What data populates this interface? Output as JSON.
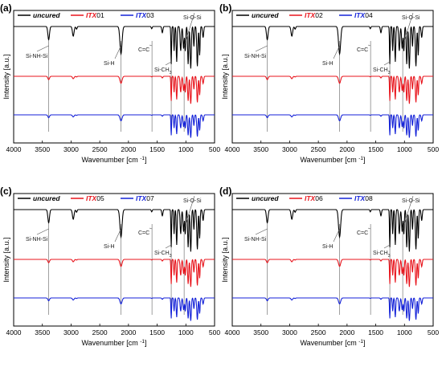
{
  "panels_meta": {
    "x_ticks": [
      4000,
      3500,
      3000,
      2500,
      2000,
      1500,
      1000,
      500
    ],
    "xlabel": "Wavenumber [cm",
    "xlabel_sup": "-1",
    "xlabel_close": "]",
    "ylabel": "Intensity [a.u.]",
    "colors": {
      "uncured": "#000000",
      "sample_a": "#e8141c",
      "sample_b": "#1422d8"
    }
  },
  "chart_data": [
    {
      "type": "line",
      "panel_label": "(a)",
      "xlabel": "Wavenumber [cm-1]",
      "ylabel": "Intensity [a.u.]",
      "xlim": [
        4000,
        500
      ],
      "x_reversed": true,
      "series": [
        {
          "name": "uncured",
          "color": "#000000"
        },
        {
          "name": "ITX01",
          "color": "#e8141c"
        },
        {
          "name": "ITX03",
          "color": "#1422d8"
        }
      ],
      "legend_items": [
        {
          "prefix": "uncured",
          "suffix": ""
        },
        {
          "prefix": "ITX",
          "suffix": "01"
        },
        {
          "prefix": "ITX",
          "suffix": "03"
        }
      ],
      "annotations": [
        {
          "text": "Si-NH-Si",
          "x": 3390
        },
        {
          "text": "Si-H",
          "x": 2130
        },
        {
          "text": "C=C",
          "x": 1590
        },
        {
          "text": "Si-CH3",
          "x": 1255
        },
        {
          "text": "Si-O-Si",
          "x": 1030
        }
      ]
    },
    {
      "type": "line",
      "panel_label": "(b)",
      "xlabel": "Wavenumber [cm-1]",
      "ylabel": "Intensity [a.u.]",
      "xlim": [
        4000,
        500
      ],
      "x_reversed": true,
      "series": [
        {
          "name": "uncured",
          "color": "#000000"
        },
        {
          "name": "ITX02",
          "color": "#e8141c"
        },
        {
          "name": "ITX04",
          "color": "#1422d8"
        }
      ],
      "legend_items": [
        {
          "prefix": "uncured",
          "suffix": ""
        },
        {
          "prefix": "ITX",
          "suffix": "02"
        },
        {
          "prefix": "ITX",
          "suffix": "04"
        }
      ],
      "annotations": [
        {
          "text": "Si-NH-Si",
          "x": 3390
        },
        {
          "text": "Si-H",
          "x": 2130
        },
        {
          "text": "C=C",
          "x": 1590
        },
        {
          "text": "Si-CH3",
          "x": 1255
        },
        {
          "text": "Si-O-Si",
          "x": 1030
        }
      ]
    },
    {
      "type": "line",
      "panel_label": "(c)",
      "xlabel": "Wavenumber [cm-1]",
      "ylabel": "Intensity [a.u.]",
      "xlim": [
        4000,
        500
      ],
      "x_reversed": true,
      "series": [
        {
          "name": "uncured",
          "color": "#000000"
        },
        {
          "name": "ITX05",
          "color": "#e8141c"
        },
        {
          "name": "ITX07",
          "color": "#1422d8"
        }
      ],
      "legend_items": [
        {
          "prefix": "uncured",
          "suffix": ""
        },
        {
          "prefix": "ITX",
          "suffix": "05"
        },
        {
          "prefix": "ITX",
          "suffix": "07"
        }
      ],
      "annotations": [
        {
          "text": "Si-NH-Si",
          "x": 3390
        },
        {
          "text": "Si-H",
          "x": 2130
        },
        {
          "text": "C=C",
          "x": 1590
        },
        {
          "text": "Si-CH3",
          "x": 1255
        },
        {
          "text": "Si-O-Si",
          "x": 1030
        }
      ]
    },
    {
      "type": "line",
      "panel_label": "(d)",
      "xlabel": "Wavenumber [cm-1]",
      "ylabel": "Intensity [a.u.]",
      "xlim": [
        4000,
        500
      ],
      "x_reversed": true,
      "series": [
        {
          "name": "uncured",
          "color": "#000000"
        },
        {
          "name": "ITX06",
          "color": "#e8141c"
        },
        {
          "name": "ITX08",
          "color": "#1422d8"
        }
      ],
      "legend_items": [
        {
          "prefix": "uncured",
          "suffix": ""
        },
        {
          "prefix": "ITX",
          "suffix": "06"
        },
        {
          "prefix": "ITX",
          "suffix": "08"
        }
      ],
      "annotations": [
        {
          "text": "Si-NH-Si",
          "x": 3390
        },
        {
          "text": "Si-H",
          "x": 2130
        },
        {
          "text": "C=C",
          "x": 1590
        },
        {
          "text": "Si-CH3",
          "x": 1255
        },
        {
          "text": "Si-O-Si",
          "x": 1030
        }
      ]
    }
  ]
}
